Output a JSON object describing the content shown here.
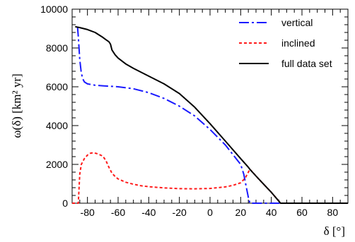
{
  "chart_data": {
    "type": "line",
    "xlabel": "δ [°]",
    "ylabel": "ω(δ) [km² yr]",
    "xlim": [
      -90,
      90
    ],
    "ylim": [
      0,
      10000
    ],
    "x_ticks": [
      -80,
      -60,
      -40,
      -20,
      0,
      20,
      40,
      60,
      80
    ],
    "x_tick_labels": [
      "-80",
      "-60",
      "-40",
      "-20",
      "0",
      "20",
      "40",
      "60",
      "80"
    ],
    "y_ticks": [
      0,
      2000,
      4000,
      6000,
      8000,
      10000
    ],
    "y_tick_labels": [
      "0",
      "2000",
      "4000",
      "6000",
      "8000",
      "10000"
    ],
    "grid": false,
    "legend_position": "top-right",
    "series": [
      {
        "name": "vertical",
        "color": "#1a1aff",
        "dash": "long-dash-dot",
        "x": [
          -86.5,
          -86,
          -85,
          -84,
          -83,
          -82,
          -80,
          -75,
          -70,
          -60,
          -50,
          -40,
          -30,
          -20,
          -10,
          0,
          10,
          20,
          22,
          24,
          25,
          26,
          27,
          90
        ],
        "y": [
          9100,
          8600,
          7400,
          6700,
          6400,
          6250,
          6150,
          6080,
          6050,
          6000,
          5900,
          5700,
          5400,
          5000,
          4500,
          3800,
          3000,
          2000,
          1500,
          700,
          300,
          0,
          0,
          0
        ]
      },
      {
        "name": "inclined",
        "color": "#ff1a1a",
        "dash": "dotted",
        "x": [
          -90,
          -86,
          -85,
          -84,
          -82,
          -80,
          -78,
          -76,
          -74,
          -72,
          -70,
          -68,
          -66,
          -64,
          -62,
          -60,
          -55,
          -50,
          -45,
          -40,
          -30,
          -20,
          -10,
          0,
          10,
          15,
          20,
          23,
          25,
          26,
          28,
          30,
          35,
          40,
          45,
          46,
          50,
          60,
          70,
          80,
          90
        ],
        "y": [
          0,
          0,
          1500,
          2000,
          2300,
          2480,
          2580,
          2600,
          2560,
          2500,
          2430,
          2200,
          1850,
          1550,
          1380,
          1250,
          1080,
          980,
          900,
          850,
          790,
          750,
          740,
          760,
          840,
          920,
          1050,
          1300,
          1600,
          1750,
          1580,
          1400,
          980,
          560,
          100,
          0,
          0,
          0,
          0,
          0,
          0
        ]
      },
      {
        "name": "full data set",
        "color": "#000000",
        "dash": "solid",
        "x": [
          -88,
          -85,
          -80,
          -75,
          -70,
          -68,
          -66,
          -65,
          -64,
          -62,
          -60,
          -55,
          -50,
          -40,
          -30,
          -20,
          -10,
          0,
          10,
          20,
          25,
          26,
          30,
          35,
          40,
          45,
          46,
          50,
          60,
          70,
          80,
          90
        ],
        "y": [
          9100,
          9050,
          8950,
          8800,
          8550,
          8430,
          8320,
          8200,
          7900,
          7650,
          7480,
          7180,
          6950,
          6550,
          6150,
          5650,
          4950,
          4100,
          3200,
          2300,
          1850,
          1750,
          1400,
          980,
          560,
          100,
          0,
          0,
          0,
          0,
          0,
          0
        ]
      }
    ]
  }
}
